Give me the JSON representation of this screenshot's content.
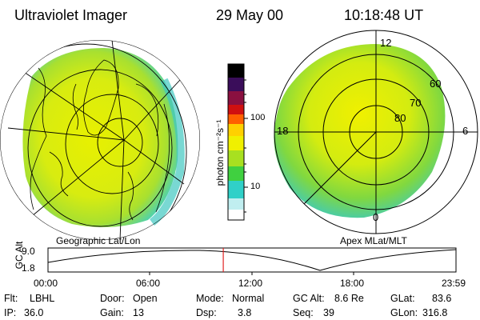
{
  "header": {
    "instrument": "Ultraviolet Imager",
    "date": "29 May 00",
    "time": "10:18:48 UT"
  },
  "panels": {
    "left_caption": "Geographic Lat/Lon",
    "right_caption": "Apex MLat/MLT"
  },
  "polar_plot": {
    "mlt_labels": {
      "top": "12",
      "left": "18",
      "right": "6",
      "bottom": "0"
    },
    "mlat_labels": [
      "60",
      "70",
      "80"
    ]
  },
  "colorbar": {
    "unit_label": "photon cm⁻²s⁻¹",
    "ticks": [
      "100",
      "10"
    ],
    "colors": [
      "#000000",
      "#3a0d5a",
      "#8a1040",
      "#d01010",
      "#ff6000",
      "#ffd000",
      "#f0f000",
      "#a8e020",
      "#40d040",
      "#30d0c8",
      "#c0eef0",
      "#ffffff"
    ]
  },
  "timeline": {
    "axis_label": "GC Alt",
    "y_ticks": [
      "9.0",
      "1.8"
    ],
    "x_ticks": [
      "00:00",
      "06:00",
      "12:00",
      "18:00",
      "23:59"
    ],
    "current_time_hours": 10.31
  },
  "info": {
    "flt_label": "Flt:",
    "flt_value": "LBHL",
    "ip_label": "IP:",
    "ip_value": "36.0",
    "door_label": "Door:",
    "door_value": "Open",
    "gain_label": "Gain:",
    "gain_value": "13",
    "mode_label": "Mode:",
    "mode_value": "Normal",
    "dsp_label": "Dsp:",
    "dsp_value": "3.8",
    "gcalt_label": "GC Alt:",
    "gcalt_value": "8.6 Re",
    "seq_label": "Seq:",
    "seq_value": "39",
    "glat_label": "GLat:",
    "glat_value": "83.6",
    "glon_label": "GLon:",
    "glon_value": "316.8"
  }
}
